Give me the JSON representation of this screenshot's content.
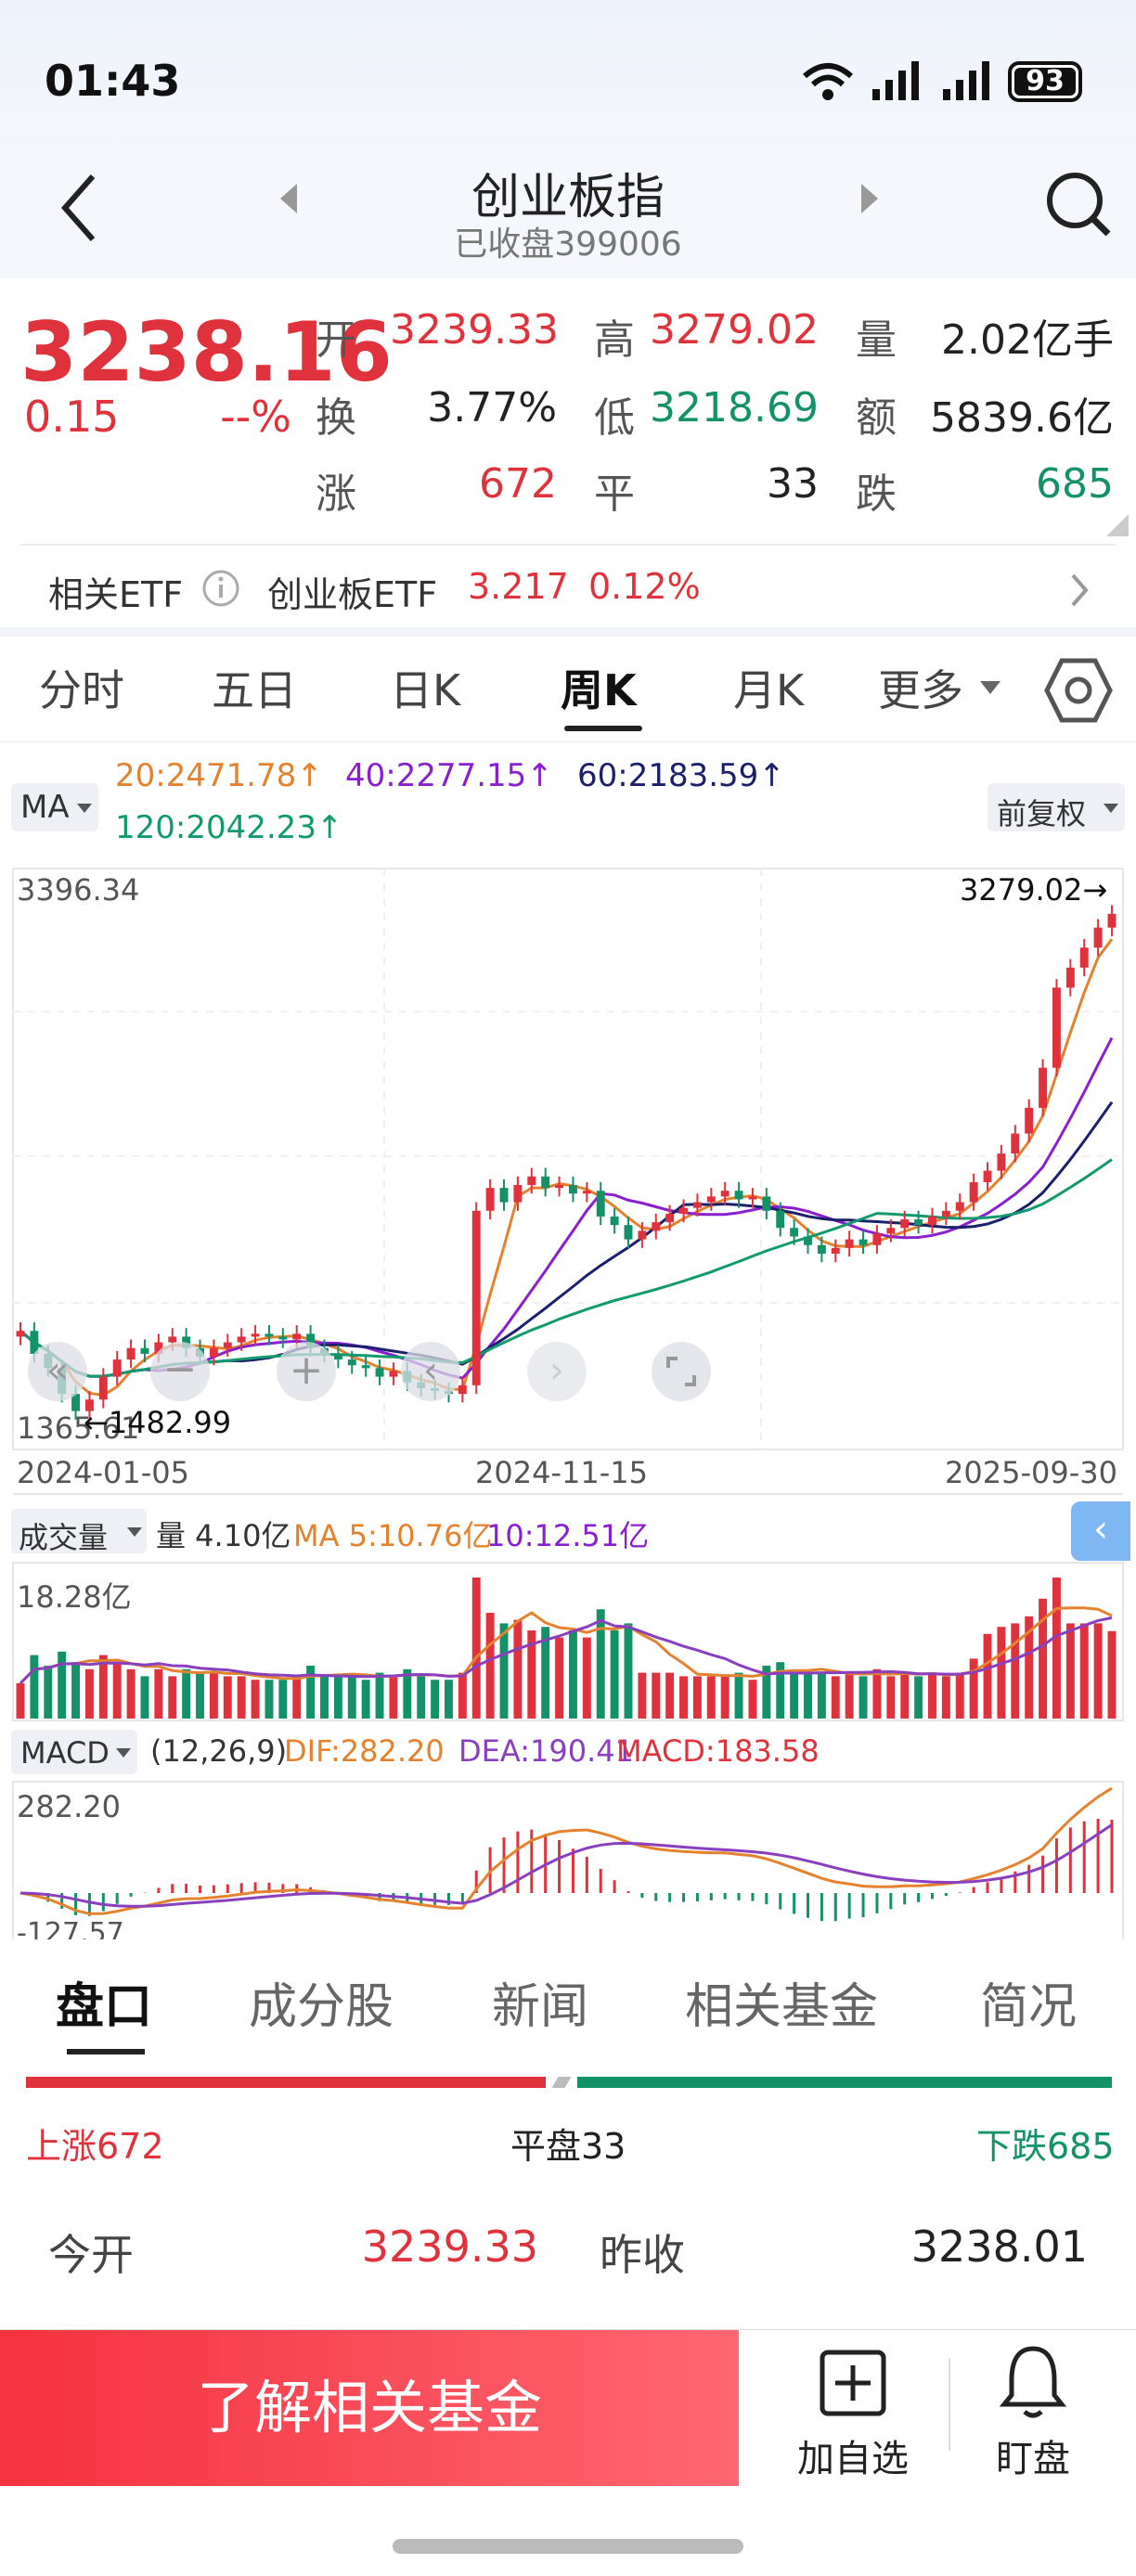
{
  "status": {
    "time": "01:43",
    "battery": "93"
  },
  "header": {
    "title": "创业板指",
    "subtitle": "已收盘399006"
  },
  "quote": {
    "price": "3238.16",
    "change": "0.15",
    "change_pct": "--%",
    "open_label": "开",
    "open": "3239.33",
    "high_label": "高",
    "high": "3279.02",
    "volume_label": "量",
    "volume": "2.02亿手",
    "turnover_label": "换",
    "turnover": "3.77%",
    "low_label": "低",
    "low": "3218.69",
    "amount_label": "额",
    "amount": "5839.6亿",
    "up_label": "涨",
    "up": "672",
    "flat_label": "平",
    "flat": "33",
    "down_label": "跌",
    "down": "685"
  },
  "etf": {
    "label": "相关ETF",
    "name": "创业板ETF",
    "price": "3.217",
    "pct": "0.12%"
  },
  "tabs": [
    {
      "label": "分时"
    },
    {
      "label": "五日"
    },
    {
      "label": "日K"
    },
    {
      "label": "周K"
    },
    {
      "label": "月K"
    },
    {
      "label": "更多"
    }
  ],
  "ma": {
    "selector": "MA",
    "ma20": "20:2471.78",
    "ma40": "40:2277.15",
    "ma60": "60:2183.59",
    "ma120": "120:2042.23",
    "adjust": "前复权"
  },
  "colors": {
    "red": "#e0323c",
    "green": "#13926a",
    "ma20": "#e5822e",
    "ma40": "#8a1fd0",
    "ma60": "#1c1f6b",
    "ma120": "#129a6e"
  },
  "chart_data": {
    "type": "candlestick",
    "x_start": "2024-01-05",
    "x_mid": "2024-11-15",
    "x_end": "2025-09-30",
    "y_max_label": "3396.34",
    "y_min_label": "1365.61",
    "high_marker": "3279.02",
    "low_marker": "1482.99",
    "ylim": [
      1365.61,
      3396.34
    ],
    "closes": [
      1780,
      1700,
      1650,
      1560,
      1500,
      1540,
      1620,
      1680,
      1720,
      1700,
      1740,
      1760,
      1720,
      1690,
      1720,
      1740,
      1760,
      1770,
      1760,
      1750,
      1770,
      1720,
      1700,
      1680,
      1660,
      1650,
      1620,
      1640,
      1600,
      1580,
      1570,
      1560,
      1590,
      2200,
      2280,
      2230,
      2290,
      2320,
      2280,
      2290,
      2260,
      2270,
      2180,
      2150,
      2100,
      2130,
      2160,
      2190,
      2210,
      2230,
      2250,
      2270,
      2240,
      2250,
      2200,
      2140,
      2110,
      2080,
      2050,
      2070,
      2100,
      2080,
      2120,
      2140,
      2170,
      2150,
      2180,
      2200,
      2230,
      2300,
      2340,
      2400,
      2470,
      2560,
      2700,
      2980,
      3050,
      3120,
      3190,
      3238
    ],
    "volume_label": "量 4.10亿",
    "volume_ma5": "MA 5:10.76亿",
    "volume_ma10": "10:12.51亿",
    "volume_max_label": "18.28亿",
    "macd_params": "(12,26,9)",
    "dif": "DIF:282.20",
    "dea": "DEA:190.41",
    "macd": "MACD:183.58",
    "macd_max_label": "282.20",
    "macd_min_label": "-127.57"
  },
  "panels": {
    "volume": "成交量",
    "macd": "MACD"
  },
  "bottom_tabs": [
    {
      "label": "盘口"
    },
    {
      "label": "成分股"
    },
    {
      "label": "新闻"
    },
    {
      "label": "相关基金"
    },
    {
      "label": "简况"
    }
  ],
  "breadth": {
    "up": "上涨672",
    "flat": "平盘33",
    "down": "下跌685"
  },
  "detail": {
    "open_label": "今开",
    "open": "3239.33",
    "prev_label": "昨收",
    "prev": "3238.01"
  },
  "bottom": {
    "fund_button": "了解相关基金",
    "watch": "加自选",
    "alert": "盯盘"
  }
}
